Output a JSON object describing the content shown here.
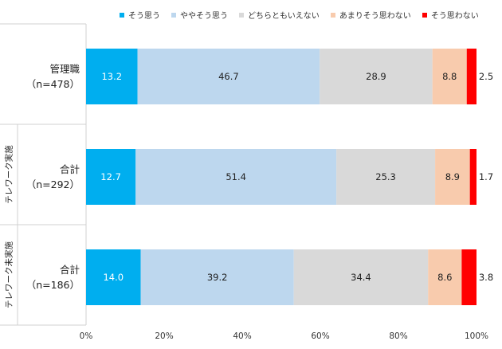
{
  "chart_data": {
    "type": "bar",
    "orientation": "horizontal",
    "stacked": "percent",
    "legend_position": "top",
    "grid": false,
    "xlim": [
      0,
      100
    ],
    "x_ticks": [
      "0%",
      "20%",
      "40%",
      "60%",
      "80%",
      "100%"
    ],
    "groups": [
      {
        "label": "",
        "rows": [
          0
        ]
      },
      {
        "label": "テレワーク実施",
        "rows": [
          1
        ]
      },
      {
        "label": "テレワーク未実施",
        "rows": [
          2
        ]
      }
    ],
    "categories": [
      {
        "line1": "管理職",
        "line2": "（n=478）"
      },
      {
        "line1": "合計",
        "line2": "（n=292）"
      },
      {
        "line1": "合計",
        "line2": "（n=186）"
      }
    ],
    "series": [
      {
        "name": "そう思う",
        "color": "#00AEEF",
        "values": [
          13.2,
          12.7,
          14.0
        ],
        "labels": [
          "13.2",
          "12.7",
          "14.0"
        ]
      },
      {
        "name": "ややそう思う",
        "color": "#BDD7EE",
        "values": [
          46.7,
          51.4,
          39.2
        ],
        "labels": [
          "46.7",
          "51.4",
          "39.2"
        ]
      },
      {
        "name": "どちらともいえない",
        "color": "#D9D9D9",
        "values": [
          28.9,
          25.3,
          34.4
        ],
        "labels": [
          "28.9",
          "25.3",
          "34.4"
        ]
      },
      {
        "name": "あまりそう思わない",
        "color": "#F8CBAD",
        "values": [
          8.8,
          8.9,
          8.6
        ],
        "labels": [
          "8.8",
          "8.9",
          "8.6"
        ]
      },
      {
        "name": "そう思わない",
        "color": "#FF0000",
        "values": [
          2.5,
          1.7,
          3.8
        ],
        "labels": [
          "2.5",
          "1.7",
          "3.8"
        ]
      }
    ]
  }
}
